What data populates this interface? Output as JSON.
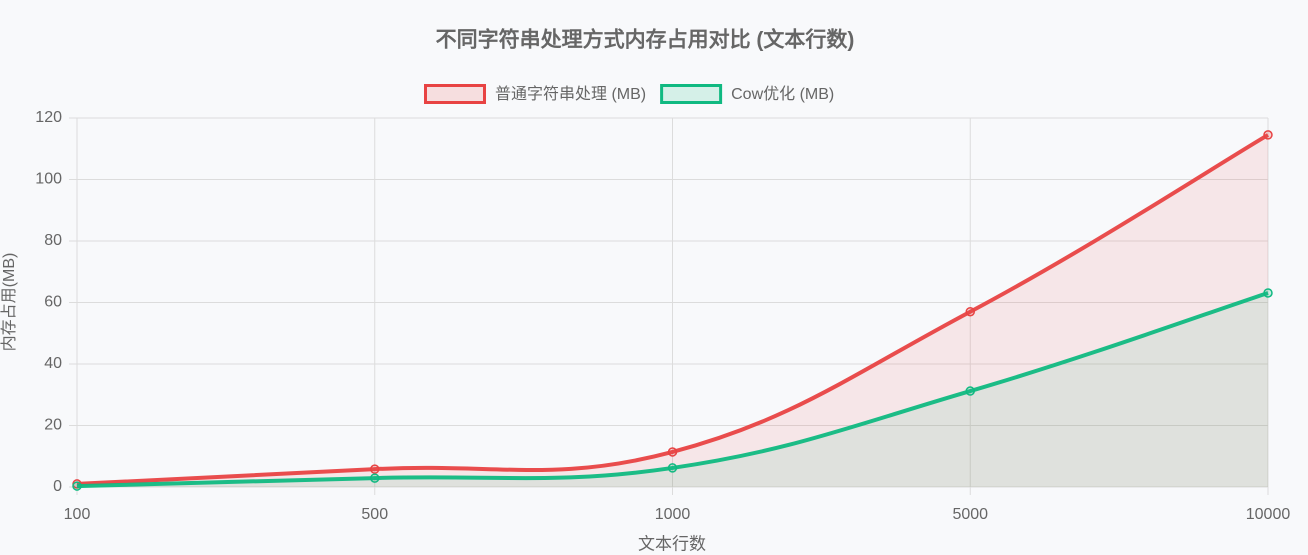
{
  "chart_data": {
    "type": "line",
    "title": "不同字符串处理方式内存占用对比 (文本行数)",
    "x_label": "文本行数",
    "y_label": "内存占用(MB)",
    "categories": [
      "100",
      "500",
      "1000",
      "5000",
      "10000"
    ],
    "series": [
      {
        "name": "普通字符串处理 (MB)",
        "color": "#e84343",
        "values": [
          1.0,
          5.8,
          11.4,
          57.0,
          114.5
        ]
      },
      {
        "name": "Cow优化 (MB)",
        "color": "#10b981",
        "values": [
          0.3,
          2.9,
          6.2,
          31.2,
          63.1
        ]
      }
    ],
    "ylim": [
      0,
      120
    ],
    "yticks": [
      0,
      20,
      40,
      60,
      80,
      100,
      120
    ],
    "grid": true
  }
}
